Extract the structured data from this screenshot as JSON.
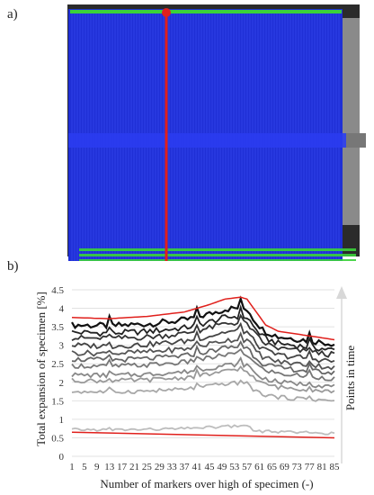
{
  "panels": {
    "a_label": "a)",
    "b_label": "b)"
  },
  "photo": {
    "overlay_color": "#1f2fd6",
    "marker_color": "#3ad23a",
    "section_line_color": "#e0201c"
  },
  "chart_data": {
    "type": "line",
    "ylabel": "Total expansion of specimen [%]",
    "xlabel": "Number of markers over high of specimen (-)",
    "arrow_label": "Points in time",
    "ylim": [
      0,
      4.5
    ],
    "yticks": [
      "0",
      "0.5",
      "1",
      "1.5",
      "2",
      "2.5",
      "3",
      "3.5",
      "4",
      "4.5"
    ],
    "xticks": [
      "1",
      "5",
      "9",
      "13",
      "17",
      "21",
      "25",
      "29",
      "33",
      "37",
      "41",
      "45",
      "49",
      "53",
      "57",
      "61",
      "65",
      "69",
      "73",
      "77",
      "81",
      "85"
    ],
    "grid": "horizontal",
    "envelope": {
      "color": "#e0201c",
      "upper": [
        [
          1,
          3.75
        ],
        [
          13,
          3.72
        ],
        [
          25,
          3.78
        ],
        [
          37,
          3.9
        ],
        [
          45,
          4.1
        ],
        [
          50,
          4.25
        ],
        [
          55,
          4.3
        ],
        [
          57,
          4.25
        ],
        [
          60,
          3.9
        ],
        [
          63,
          3.55
        ],
        [
          67,
          3.38
        ],
        [
          75,
          3.28
        ],
        [
          85,
          3.15
        ]
      ],
      "lower": [
        [
          1,
          0.65
        ],
        [
          85,
          0.5
        ]
      ]
    },
    "series_baselines": [
      3.55,
      3.35,
      3.2,
      3.0,
      2.8,
      2.62,
      2.45,
      2.2,
      2.05,
      1.75,
      0.72
    ],
    "series_colors": [
      "#111111",
      "#222222",
      "#333333",
      "#444444",
      "#555555",
      "#666666",
      "#777777",
      "#888888",
      "#999999",
      "#a8a8a8",
      "#bdbdbd"
    ]
  }
}
